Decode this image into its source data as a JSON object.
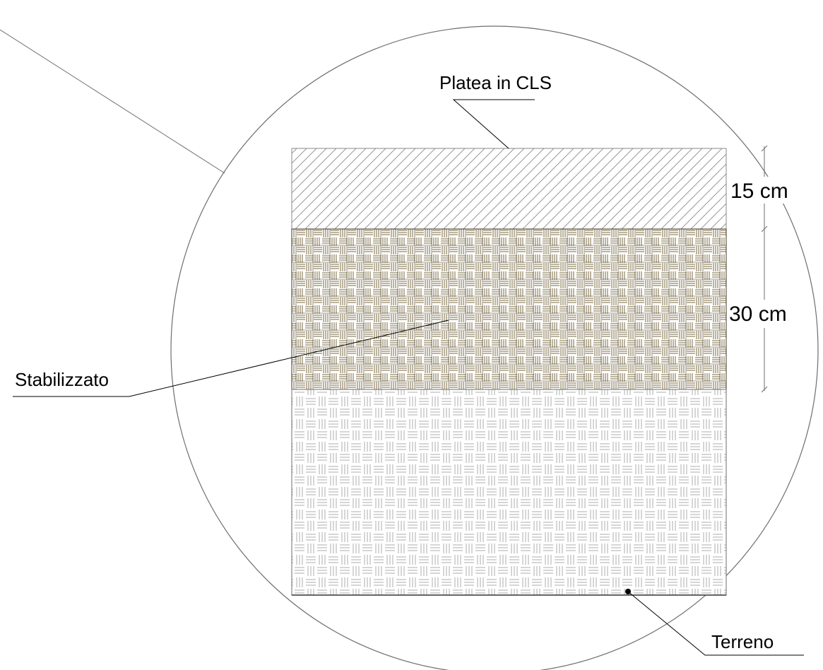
{
  "labels": {
    "platea": "Platea in CLS",
    "stabilizzato": "Stabilizzato",
    "terreno": "Terreno"
  },
  "dimensions": {
    "top_layer": "15 cm",
    "middle_layer": "30 cm"
  },
  "colors": {
    "line": "#6e6e6e",
    "leader": "#000000",
    "stabilizzato_hatch": "#7a6a3f",
    "terreno_hatch": "#9a9a9a",
    "platea_hatch": "#8a8a8a"
  }
}
